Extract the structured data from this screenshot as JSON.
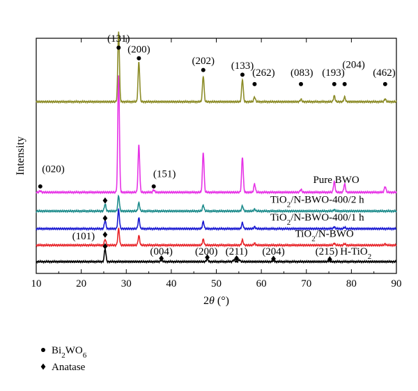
{
  "chart_data": {
    "type": "line",
    "xlabel": "2θ (°)",
    "ylabel": "Intensity",
    "xlim": [
      10,
      90
    ],
    "x_ticks": [
      10,
      20,
      30,
      40,
      50,
      60,
      70,
      80,
      90
    ],
    "y_ticks_shown": false,
    "grid": false,
    "series": [
      {
        "name": "H-TiO2",
        "color": "#000000",
        "baseline": 0.05,
        "peaks": [
          [
            25.3,
            0.055
          ],
          [
            37.8,
            0.008
          ],
          [
            48.0,
            0.012
          ],
          [
            53.9,
            0.008
          ],
          [
            55.1,
            0.008
          ],
          [
            62.7,
            0.006
          ],
          [
            75.0,
            0.004
          ]
        ]
      },
      {
        "name": "TiO2/N-BWO",
        "color": "#e8262b",
        "baseline": 0.12,
        "peaks": [
          [
            25.3,
            0.025
          ],
          [
            28.3,
            0.07
          ],
          [
            32.8,
            0.04
          ],
          [
            47.1,
            0.025
          ],
          [
            55.8,
            0.022
          ],
          [
            58.5,
            0.008
          ],
          [
            76.2,
            0.008
          ],
          [
            78.5,
            0.006
          ],
          [
            87.5,
            0.005
          ]
        ]
      },
      {
        "name": "TiO2/N-BWO-400/1 h",
        "color": "#1a1ad2",
        "baseline": 0.19,
        "peaks": [
          [
            25.3,
            0.035
          ],
          [
            28.3,
            0.08
          ],
          [
            32.8,
            0.045
          ],
          [
            47.1,
            0.03
          ],
          [
            55.8,
            0.025
          ],
          [
            58.5,
            0.008
          ],
          [
            76.2,
            0.008
          ],
          [
            78.5,
            0.006
          ]
        ]
      },
      {
        "name": "TiO2/N-BWO-400/2 h",
        "color": "#1e8c8c",
        "baseline": 0.265,
        "peaks": [
          [
            25.3,
            0.03
          ],
          [
            28.3,
            0.065
          ],
          [
            32.8,
            0.035
          ],
          [
            47.1,
            0.025
          ],
          [
            55.8,
            0.022
          ],
          [
            58.5,
            0.008
          ],
          [
            76.2,
            0.006
          ]
        ]
      },
      {
        "name": "Pure BWO",
        "color": "#e632e6",
        "baseline": 0.345,
        "peaks": [
          [
            10.9,
            0.006
          ],
          [
            28.3,
            0.5
          ],
          [
            32.8,
            0.2
          ],
          [
            36.1,
            0.01
          ],
          [
            47.1,
            0.17
          ],
          [
            55.8,
            0.15
          ],
          [
            58.5,
            0.035
          ],
          [
            68.8,
            0.012
          ],
          [
            76.2,
            0.045
          ],
          [
            78.5,
            0.035
          ],
          [
            87.5,
            0.025
          ]
        ]
      },
      {
        "name": "",
        "color": "#8c8c28",
        "baseline": 0.73,
        "peaks": [
          [
            28.3,
            0.3
          ],
          [
            32.8,
            0.17
          ],
          [
            47.1,
            0.11
          ],
          [
            55.8,
            0.095
          ],
          [
            58.5,
            0.02
          ],
          [
            68.8,
            0.01
          ],
          [
            76.2,
            0.025
          ],
          [
            78.5,
            0.02
          ],
          [
            87.5,
            0.012
          ]
        ]
      }
    ],
    "annotations": [
      {
        "text": "(131)",
        "x": 28.3,
        "y": 0.985
      },
      {
        "text": "(200)",
        "x": 32.8,
        "y": 0.94
      },
      {
        "text": "(202)",
        "x": 47.1,
        "y": 0.89
      },
      {
        "text": "(133)",
        "x": 55.8,
        "y": 0.87
      },
      {
        "text": "(262)",
        "x": 60.5,
        "y": 0.84
      },
      {
        "text": "(083)",
        "x": 69.0,
        "y": 0.84
      },
      {
        "text": "(193)",
        "x": 76.0,
        "y": 0.84
      },
      {
        "text": "(204)",
        "x": 80.5,
        "y": 0.875
      },
      {
        "text": "(462)",
        "x": 87.3,
        "y": 0.84
      },
      {
        "text": "(020)",
        "x": 13.8,
        "y": 0.43
      },
      {
        "text": "(151)",
        "x": 38.5,
        "y": 0.41
      },
      {
        "text": "(101)",
        "x": 20.5,
        "y": 0.145
      },
      {
        "text": "(004)",
        "x": 37.8,
        "y": 0.08
      },
      {
        "text": "(200)",
        "x": 47.8,
        "y": 0.08
      },
      {
        "text": "(211)",
        "x": 54.5,
        "y": 0.08
      },
      {
        "text": "(204)",
        "x": 62.7,
        "y": 0.08
      },
      {
        "text": "(215)",
        "x": 74.5,
        "y": 0.08
      }
    ],
    "circle_markers": [
      [
        28.3,
        0.96
      ],
      [
        32.8,
        0.915
      ],
      [
        47.1,
        0.865
      ],
      [
        55.8,
        0.845
      ],
      [
        58.5,
        0.805
      ],
      [
        68.8,
        0.805
      ],
      [
        76.2,
        0.805
      ],
      [
        78.5,
        0.805
      ],
      [
        87.5,
        0.805
      ],
      [
        10.9,
        0.37
      ],
      [
        36.1,
        0.37
      ]
    ],
    "diamond_markers": [
      [
        25.3,
        0.31
      ],
      [
        25.3,
        0.235
      ],
      [
        25.3,
        0.165
      ],
      [
        25.3,
        0.115
      ],
      [
        37.8,
        0.064
      ],
      [
        48.0,
        0.068
      ],
      [
        54.5,
        0.064
      ],
      [
        62.7,
        0.062
      ],
      [
        75.2,
        0.06
      ]
    ],
    "series_labels": [
      {
        "text": "Pure BWO",
        "x": 71.5,
        "y": 0.385
      },
      {
        "text": "TiO2/N-BWO-400/2 h",
        "x": 62.0,
        "y": 0.3
      },
      {
        "text": "TiO2/N-BWO-400/1 h",
        "x": 62.0,
        "y": 0.225
      },
      {
        "text": "TiO2/N-BWO",
        "x": 67.5,
        "y": 0.155
      },
      {
        "text": "H-TiO2",
        "x": 77.5,
        "y": 0.08
      }
    ],
    "legend": [
      {
        "marker": "circle",
        "label": "Bi2WO6"
      },
      {
        "marker": "diamond",
        "label": "Anatase"
      }
    ]
  }
}
